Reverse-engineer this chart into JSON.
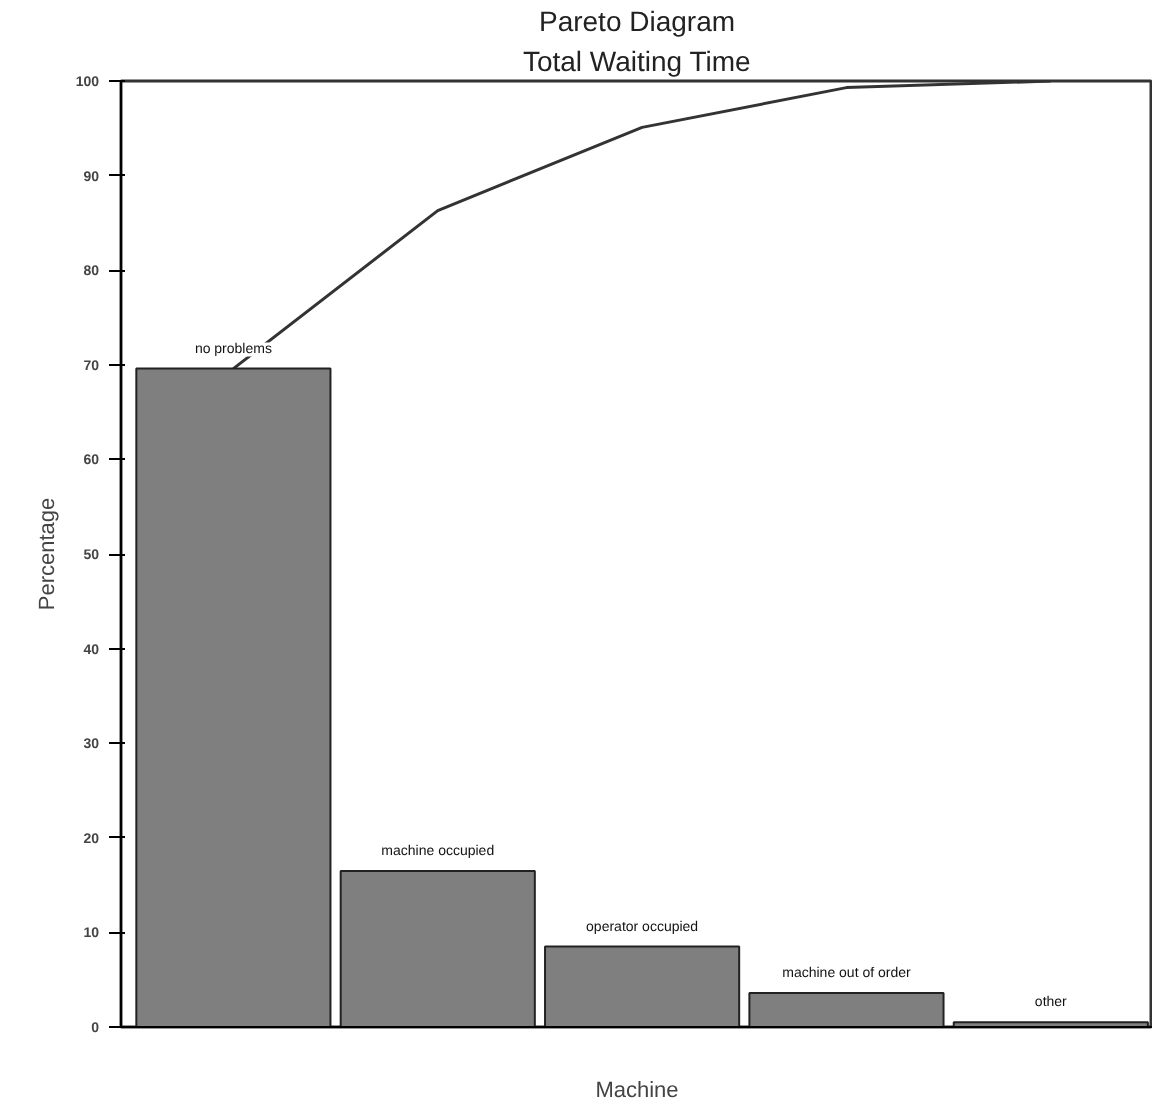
{
  "chart_data": {
    "type": "bar",
    "title": "Pareto Diagram",
    "subtitle": "Total Waiting Time",
    "xlabel": "Machine",
    "ylabel": "Percentage",
    "categories": [
      "no problems",
      "machine occupied",
      "operator occupied",
      "machine out of order",
      "other"
    ],
    "series": [
      {
        "color": "#7f7f7f",
        "values": [
          69.6,
          16.5,
          8.5,
          3.6,
          0.5
        ]
      },
      {
        "type": "line",
        "color": "#333333",
        "values": [
          69.6,
          86.3,
          95.1,
          99.3,
          100
        ]
      }
    ],
    "ylim": [
      0,
      100
    ],
    "yticks": [
      0,
      10,
      20,
      30,
      40,
      50,
      60,
      70,
      80,
      90,
      100
    ],
    "tick_labels": "y",
    "grid": false,
    "marker": "none",
    "line_style": "solid"
  }
}
